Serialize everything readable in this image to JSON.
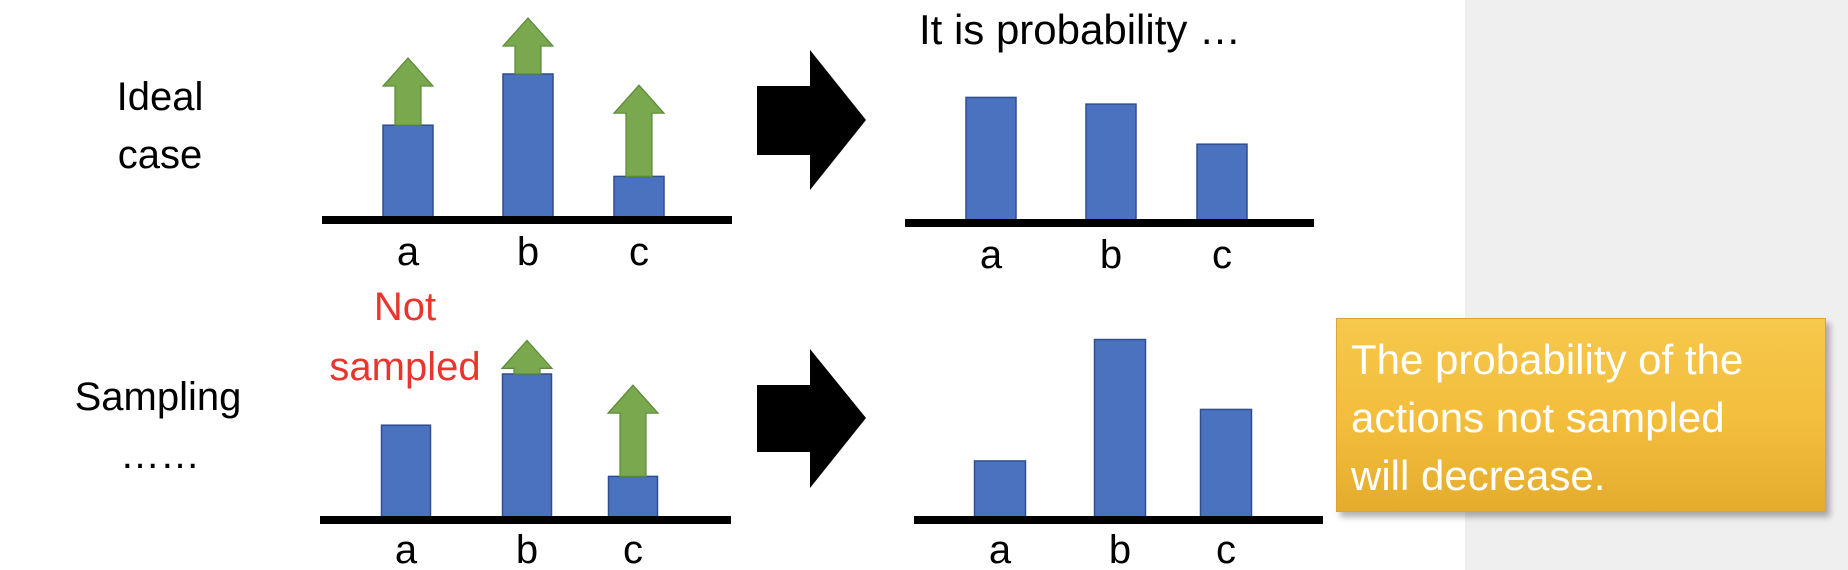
{
  "rows": [
    {
      "label_lines": [
        "Ideal",
        "case"
      ]
    },
    {
      "label_lines": [
        "Sampling",
        "……"
      ]
    }
  ],
  "top_right_caption": "It is probability …",
  "not_sampled_lines": [
    "Not",
    "sampled"
  ],
  "colors": {
    "bar": "#4a72bf",
    "bar_stroke": "#2f4f8f",
    "up_arrow": "#79a84f",
    "up_arrow_stroke": "#5b8a38",
    "axis": "#000000",
    "red_text": "#e8352e",
    "note_text": "#ffffff",
    "note_fill": "#f3bd3c"
  },
  "note": {
    "lines": [
      "The probability of the",
      "actions not sampled",
      "will decrease."
    ]
  },
  "chart_data": [
    {
      "type": "bar",
      "name_ref": "ideal-before",
      "categories": [
        "a",
        "b",
        "c"
      ],
      "values": [
        0.58,
        0.9,
        0.26
      ],
      "increase": [
        0.42,
        0.35,
        0.57
      ],
      "ylim": [
        0,
        1
      ]
    },
    {
      "type": "bar",
      "name_ref": "ideal-after",
      "categories": [
        "a",
        "b",
        "c"
      ],
      "values": [
        0.74,
        0.7,
        0.46
      ],
      "ylim": [
        0,
        1
      ]
    },
    {
      "type": "bar",
      "name_ref": "sampling-before",
      "categories": [
        "a",
        "b",
        "c"
      ],
      "values": [
        0.58,
        0.9,
        0.26
      ],
      "increase": [
        0,
        0.21,
        0.57
      ],
      "ylim": [
        0,
        1
      ]
    },
    {
      "type": "bar",
      "name_ref": "sampling-after",
      "categories": [
        "a",
        "b",
        "c"
      ],
      "values": [
        0.31,
        0.97,
        0.59
      ],
      "ylim": [
        0,
        1
      ]
    }
  ]
}
